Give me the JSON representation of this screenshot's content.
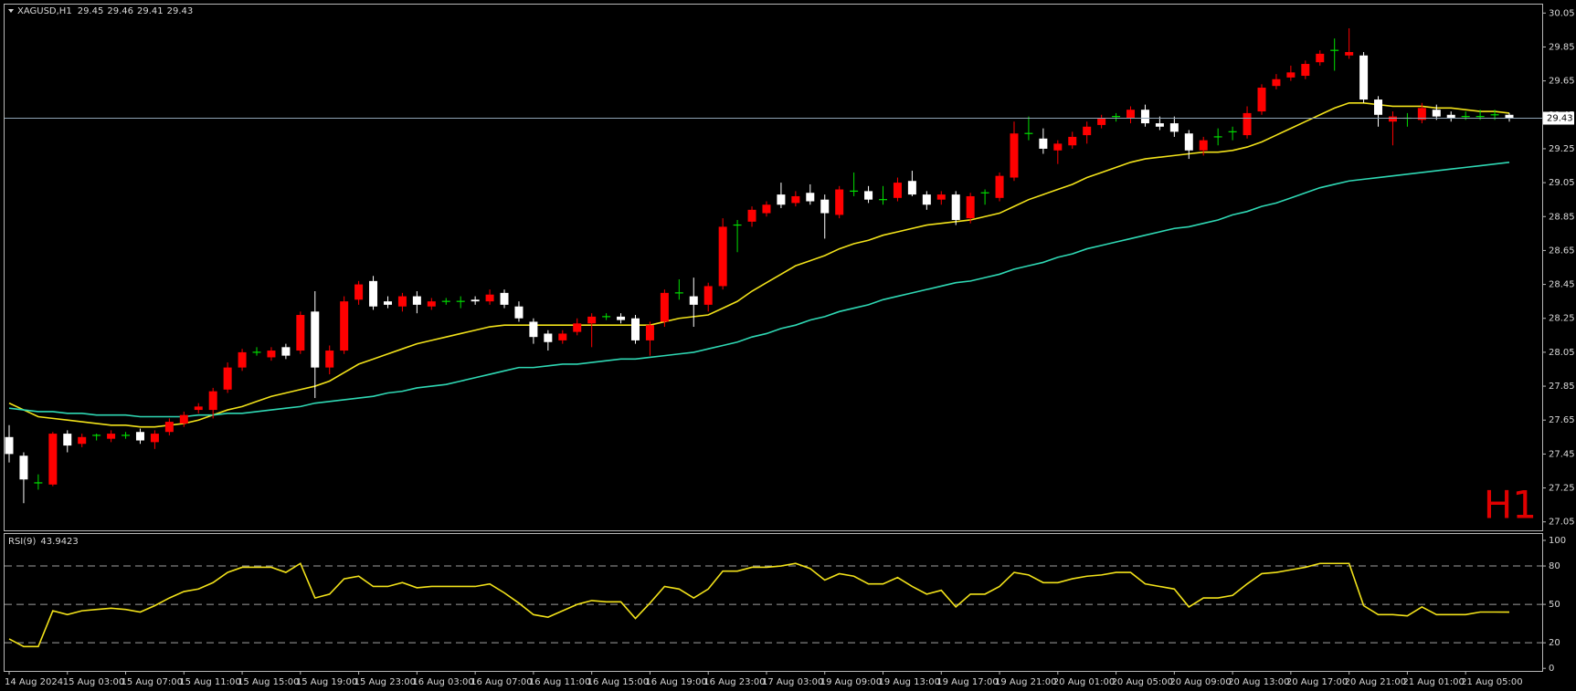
{
  "chart_data": [
    {
      "type": "candlestick",
      "title": "XAGUSD,H1",
      "categories": [
        "14 Aug 2024",
        null,
        null,
        null,
        "15 Aug 03:00",
        null,
        null,
        null,
        "15 Aug 07:00",
        null,
        null,
        null,
        "15 Aug 11:00",
        null,
        null,
        null,
        "15 Aug 15:00",
        null,
        null,
        null,
        "15 Aug 19:00",
        null,
        null,
        null,
        "15 Aug 23:00",
        null,
        null,
        null,
        "16 Aug 03:00",
        null,
        null,
        null,
        "16 Aug 07:00",
        null,
        null,
        null,
        "16 Aug 11:00",
        null,
        null,
        null,
        "16 Aug 15:00",
        null,
        null,
        null,
        "16 Aug 19:00",
        null,
        null,
        null,
        "16 Aug 23:00",
        null,
        null,
        null,
        "17 Aug 03:00",
        null,
        null,
        null,
        "19 Aug 09:00",
        null,
        null,
        null,
        "19 Aug 13:00",
        null,
        null,
        null,
        "19 Aug 17:00",
        null,
        null,
        null,
        "19 Aug 21:00",
        null,
        null,
        null,
        "20 Aug 01:00",
        null,
        null,
        null,
        "20 Aug 05:00",
        null,
        null,
        null,
        "20 Aug 09:00",
        null,
        null,
        null,
        "20 Aug 13:00",
        null,
        null,
        null,
        "20 Aug 17:00",
        null,
        null,
        null,
        "20 Aug 21:00",
        null,
        null,
        null,
        "21 Aug 01:00",
        null,
        null,
        null,
        "21 Aug 05:00",
        null,
        null,
        null
      ],
      "open": [
        27.55,
        27.44,
        27.28,
        27.27,
        27.57,
        27.51,
        27.56,
        27.54,
        27.56,
        27.58,
        27.52,
        27.58,
        27.63,
        27.71,
        27.71,
        27.83,
        27.96,
        28.05,
        28.02,
        28.08,
        28.06,
        28.29,
        27.96,
        28.06,
        28.36,
        28.47,
        28.35,
        28.32,
        28.38,
        28.32,
        28.35,
        28.35,
        28.36,
        28.35,
        28.4,
        28.32,
        28.23,
        28.16,
        28.12,
        28.17,
        28.22,
        28.26,
        28.26,
        28.25,
        28.12,
        28.23,
        28.4,
        28.38,
        28.33,
        28.44,
        28.8,
        28.82,
        28.87,
        28.98,
        28.93,
        28.99,
        28.95,
        28.86,
        29.0,
        29.0,
        28.95,
        28.96,
        29.06,
        28.98,
        28.95,
        28.98,
        28.84,
        28.99,
        28.96,
        29.08,
        29.34,
        29.31,
        29.24,
        29.27,
        29.33,
        29.39,
        29.44,
        29.43,
        29.48,
        29.4,
        29.4,
        29.34,
        29.24,
        29.32,
        29.35,
        29.33,
        29.47,
        29.62,
        29.67,
        29.68,
        29.76,
        29.83,
        29.8,
        29.8,
        29.54,
        29.41,
        29.43,
        29.42,
        29.48,
        29.45,
        29.44,
        29.44,
        29.45,
        29.45
      ],
      "high": [
        27.62,
        27.46,
        27.33,
        27.58,
        27.59,
        27.57,
        27.57,
        27.59,
        27.58,
        27.6,
        27.59,
        27.66,
        27.7,
        27.75,
        27.84,
        27.99,
        28.07,
        28.08,
        28.08,
        28.1,
        28.29,
        28.41,
        28.09,
        28.38,
        28.47,
        28.5,
        28.38,
        28.4,
        28.41,
        28.37,
        28.37,
        28.38,
        28.38,
        28.42,
        28.42,
        28.35,
        28.25,
        28.18,
        28.18,
        28.25,
        28.28,
        28.28,
        28.28,
        28.27,
        28.23,
        28.42,
        28.48,
        28.49,
        28.46,
        28.84,
        28.83,
        28.91,
        28.94,
        29.05,
        29.0,
        29.04,
        28.98,
        29.03,
        29.11,
        29.03,
        29.03,
        29.08,
        29.12,
        29.0,
        29.0,
        29.0,
        28.99,
        29.01,
        29.11,
        29.41,
        29.44,
        29.37,
        29.3,
        29.35,
        29.41,
        29.45,
        29.46,
        29.5,
        29.51,
        29.44,
        29.44,
        29.36,
        29.32,
        29.37,
        29.38,
        29.5,
        29.63,
        29.69,
        29.74,
        29.77,
        29.83,
        29.9,
        29.96,
        29.82,
        29.56,
        29.47,
        29.46,
        29.52,
        29.51,
        29.47,
        29.47,
        29.48,
        29.48,
        29.46
      ],
      "low": [
        27.4,
        27.16,
        27.24,
        27.26,
        27.46,
        27.49,
        27.53,
        27.52,
        27.54,
        27.51,
        27.48,
        27.56,
        27.61,
        27.69,
        27.66,
        27.81,
        27.94,
        28.03,
        28.0,
        28.01,
        28.04,
        27.78,
        27.92,
        28.04,
        28.33,
        28.3,
        28.31,
        28.29,
        28.28,
        28.3,
        28.33,
        28.31,
        28.33,
        28.33,
        28.31,
        28.23,
        28.1,
        28.06,
        28.1,
        28.15,
        28.08,
        28.24,
        28.22,
        28.1,
        28.03,
        28.2,
        28.36,
        28.2,
        28.29,
        28.42,
        28.64,
        28.79,
        28.85,
        28.9,
        28.91,
        28.92,
        28.72,
        28.84,
        28.97,
        28.93,
        28.92,
        28.94,
        28.97,
        28.89,
        28.92,
        28.8,
        28.81,
        28.92,
        28.94,
        29.06,
        29.3,
        29.22,
        29.16,
        29.25,
        29.28,
        29.37,
        29.41,
        29.4,
        29.38,
        29.36,
        29.32,
        29.19,
        29.21,
        29.27,
        29.3,
        29.31,
        29.45,
        29.6,
        29.65,
        29.66,
        29.74,
        29.71,
        29.78,
        29.52,
        29.38,
        29.27,
        29.38,
        29.4,
        29.42,
        29.41,
        29.42,
        29.42,
        29.42,
        29.41
      ],
      "close": [
        27.45,
        27.3,
        27.28,
        27.57,
        27.5,
        27.55,
        27.56,
        27.57,
        27.56,
        27.53,
        27.57,
        27.64,
        27.68,
        27.73,
        27.82,
        27.96,
        28.05,
        28.05,
        28.06,
        28.03,
        28.27,
        27.96,
        28.06,
        28.35,
        28.45,
        28.32,
        28.33,
        28.38,
        28.33,
        28.35,
        28.35,
        28.35,
        28.35,
        28.39,
        28.33,
        28.25,
        28.14,
        28.11,
        28.16,
        28.22,
        28.26,
        28.26,
        28.24,
        28.12,
        28.21,
        28.4,
        28.4,
        28.33,
        28.44,
        28.79,
        28.8,
        28.89,
        28.92,
        28.92,
        28.97,
        28.94,
        28.87,
        29.01,
        29.0,
        28.95,
        28.95,
        29.05,
        28.98,
        28.92,
        28.98,
        28.83,
        28.97,
        28.99,
        29.09,
        29.34,
        29.34,
        29.25,
        29.28,
        29.32,
        29.38,
        29.43,
        29.44,
        29.48,
        29.4,
        29.38,
        29.35,
        29.24,
        29.3,
        29.32,
        29.35,
        29.46,
        29.61,
        29.66,
        29.7,
        29.75,
        29.81,
        29.83,
        29.82,
        29.54,
        29.45,
        29.44,
        29.43,
        29.49,
        29.44,
        29.43,
        29.44,
        29.44,
        29.45,
        29.43
      ],
      "up_color": "#ff0000",
      "down_color": "#ffffff",
      "doji_color": "#00e000",
      "series": [
        {
          "color": "#f2e21a",
          "values": [
            27.75,
            27.71,
            27.67,
            27.66,
            27.65,
            27.64,
            27.63,
            27.62,
            27.62,
            27.61,
            27.61,
            27.62,
            27.63,
            27.65,
            27.68,
            27.71,
            27.73,
            27.76,
            27.79,
            27.81,
            27.83,
            27.85,
            27.88,
            27.93,
            27.98,
            28.01,
            28.04,
            28.07,
            28.1,
            28.12,
            28.14,
            28.16,
            28.18,
            28.2,
            28.21,
            28.21,
            28.21,
            28.21,
            28.21,
            28.21,
            28.21,
            28.21,
            28.21,
            28.21,
            28.21,
            28.23,
            28.25,
            28.26,
            28.27,
            28.31,
            28.35,
            28.41,
            28.46,
            28.51,
            28.56,
            28.59,
            28.62,
            28.66,
            28.69,
            28.71,
            28.74,
            28.76,
            28.78,
            28.8,
            28.81,
            28.82,
            28.83,
            28.85,
            28.87,
            28.91,
            28.95,
            28.98,
            29.01,
            29.04,
            29.08,
            29.11,
            29.14,
            29.17,
            29.19,
            29.2,
            29.21,
            29.22,
            29.23,
            29.23,
            29.24,
            29.26,
            29.29,
            29.33,
            29.37,
            29.41,
            29.45,
            29.49,
            29.52,
            29.52,
            29.51,
            29.5,
            29.5,
            29.5,
            29.49,
            29.49,
            29.48,
            29.47,
            29.47,
            29.46
          ]
        },
        {
          "color": "#2fd8b4",
          "values": [
            27.72,
            27.71,
            27.7,
            27.7,
            27.69,
            27.69,
            27.68,
            27.68,
            27.68,
            27.67,
            27.67,
            27.67,
            27.67,
            27.68,
            27.68,
            27.69,
            27.69,
            27.7,
            27.71,
            27.72,
            27.73,
            27.75,
            27.76,
            27.77,
            27.78,
            27.79,
            27.81,
            27.82,
            27.84,
            27.85,
            27.86,
            27.88,
            27.9,
            27.92,
            27.94,
            27.96,
            27.96,
            27.97,
            27.98,
            27.98,
            27.99,
            28.0,
            28.01,
            28.01,
            28.02,
            28.03,
            28.04,
            28.05,
            28.07,
            28.09,
            28.11,
            28.14,
            28.16,
            28.19,
            28.21,
            28.24,
            28.26,
            28.29,
            28.31,
            28.33,
            28.36,
            28.38,
            28.4,
            28.42,
            28.44,
            28.46,
            28.47,
            28.49,
            28.51,
            28.54,
            28.56,
            28.58,
            28.61,
            28.63,
            28.66,
            28.68,
            28.7,
            28.72,
            28.74,
            28.76,
            28.78,
            28.79,
            28.81,
            28.83,
            28.86,
            28.88,
            28.91,
            28.93,
            28.96,
            28.99,
            29.02,
            29.04,
            29.06,
            29.07,
            29.08,
            29.09,
            29.1,
            29.11,
            29.12,
            29.13,
            29.14,
            29.15,
            29.16,
            29.17
          ]
        }
      ],
      "ylim": [
        27.0,
        30.1
      ],
      "yticks": [
        30.05,
        29.85,
        29.65,
        29.45,
        29.25,
        29.05,
        28.85,
        28.65,
        28.45,
        28.25,
        28.05,
        27.85,
        27.65,
        27.45,
        27.25,
        27.05
      ],
      "watermark": "H1"
    },
    {
      "type": "line",
      "title": "RSI(9)",
      "series": [
        {
          "color": "#f2e21a",
          "values": [
            23,
            17,
            17,
            45,
            42,
            45,
            46,
            47,
            46,
            44,
            49,
            55,
            60,
            62,
            67,
            75,
            79,
            79,
            79,
            75,
            82,
            55,
            58,
            70,
            72,
            64,
            64,
            67,
            63,
            64,
            64,
            64,
            64,
            66,
            59,
            51,
            42,
            40,
            45,
            50,
            53,
            52,
            52,
            39,
            51,
            64,
            62,
            55,
            62,
            76,
            76,
            79,
            79,
            80,
            82,
            78,
            69,
            74,
            72,
            66,
            66,
            71,
            64,
            58,
            61,
            48,
            58,
            58,
            64,
            75,
            73,
            67,
            67,
            70,
            72,
            73,
            75,
            75,
            66,
            64,
            62,
            48,
            55,
            55,
            57,
            66,
            74,
            75,
            77,
            79,
            82,
            82,
            82,
            49,
            42,
            42,
            41,
            48,
            42,
            42,
            42,
            44,
            44,
            43.9423
          ]
        }
      ],
      "ylim": [
        -2,
        105
      ],
      "yticks": [
        100,
        80,
        50,
        20,
        0
      ],
      "levels": [
        80,
        50,
        20
      ]
    }
  ]
}
